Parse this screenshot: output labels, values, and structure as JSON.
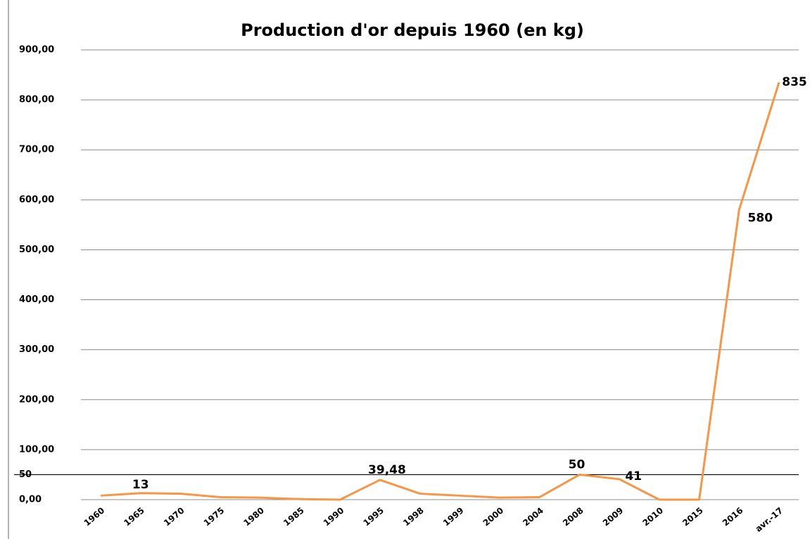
{
  "chart_data": {
    "type": "line",
    "title": "Production d'or depuis 1960 (en kg)",
    "categories": [
      "1960",
      "1965",
      "1970",
      "1975",
      "1980",
      "1985",
      "1990",
      "1995",
      "1998",
      "1999",
      "2000",
      "2004",
      "2008",
      "2009",
      "2010",
      "2015",
      "2016",
      "avr.-17"
    ],
    "series": [
      {
        "name": "Production d'or",
        "color": "#f79646",
        "values": [
          8,
          13,
          12,
          5,
          4,
          1,
          0,
          39.48,
          12,
          8,
          4,
          5,
          50,
          41,
          0,
          0,
          580,
          835
        ],
        "value_labels": [
          null,
          "13",
          null,
          null,
          null,
          null,
          null,
          "39,48",
          null,
          null,
          null,
          null,
          "50",
          "41",
          null,
          null,
          "580",
          "835"
        ]
      }
    ],
    "ylim": [
      0,
      900
    ],
    "yticks": [
      {
        "value": 0,
        "label": "0,00"
      },
      {
        "value": 100,
        "label": "100,00"
      },
      {
        "value": 200,
        "label": "200,00"
      },
      {
        "value": 300,
        "label": "300,00"
      },
      {
        "value": 400,
        "label": "400,00"
      },
      {
        "value": 500,
        "label": "500,00"
      },
      {
        "value": 600,
        "label": "600,00"
      },
      {
        "value": 700,
        "label": "700,00"
      },
      {
        "value": 800,
        "label": "800,00"
      },
      {
        "value": 900,
        "label": "900,00"
      }
    ],
    "reference_line": 50,
    "grid": true
  }
}
